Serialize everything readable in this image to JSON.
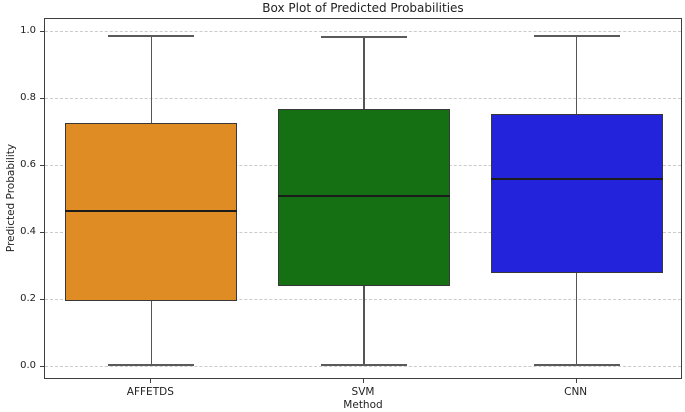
{
  "chart_data": {
    "type": "box",
    "title": "Box Plot of Predicted Probabilities",
    "xlabel": "Method",
    "ylabel": "Predicted Probability",
    "categories": [
      "AFFETDS",
      "SVM",
      "CNN"
    ],
    "yticks": [
      0.0,
      0.2,
      0.4,
      0.6,
      0.8,
      1.0
    ],
    "ytick_labels": [
      "0.0",
      "0.2",
      "0.4",
      "0.6",
      "0.8",
      "1.0"
    ],
    "ylim": [
      -0.04,
      1.04
    ],
    "grid": {
      "axis": "y",
      "style": "dashed",
      "color": "#cbcbcb"
    },
    "legend": "none",
    "outliers": "none",
    "series": [
      {
        "label": "AFFETDS",
        "color": "#de8c23",
        "stats": {
          "whisker_low": 0.005,
          "q1": 0.195,
          "median": 0.465,
          "q3": 0.73,
          "whisker_high": 0.99
        }
      },
      {
        "label": "SVM",
        "color": "#147013",
        "stats": {
          "whisker_low": 0.005,
          "q1": 0.24,
          "median": 0.51,
          "q3": 0.77,
          "whisker_high": 0.985
        }
      },
      {
        "label": "CNN",
        "color": "#2323dc",
        "stats": {
          "whisker_low": 0.005,
          "q1": 0.28,
          "median": 0.56,
          "q3": 0.755,
          "whisker_high": 0.99
        }
      }
    ]
  }
}
